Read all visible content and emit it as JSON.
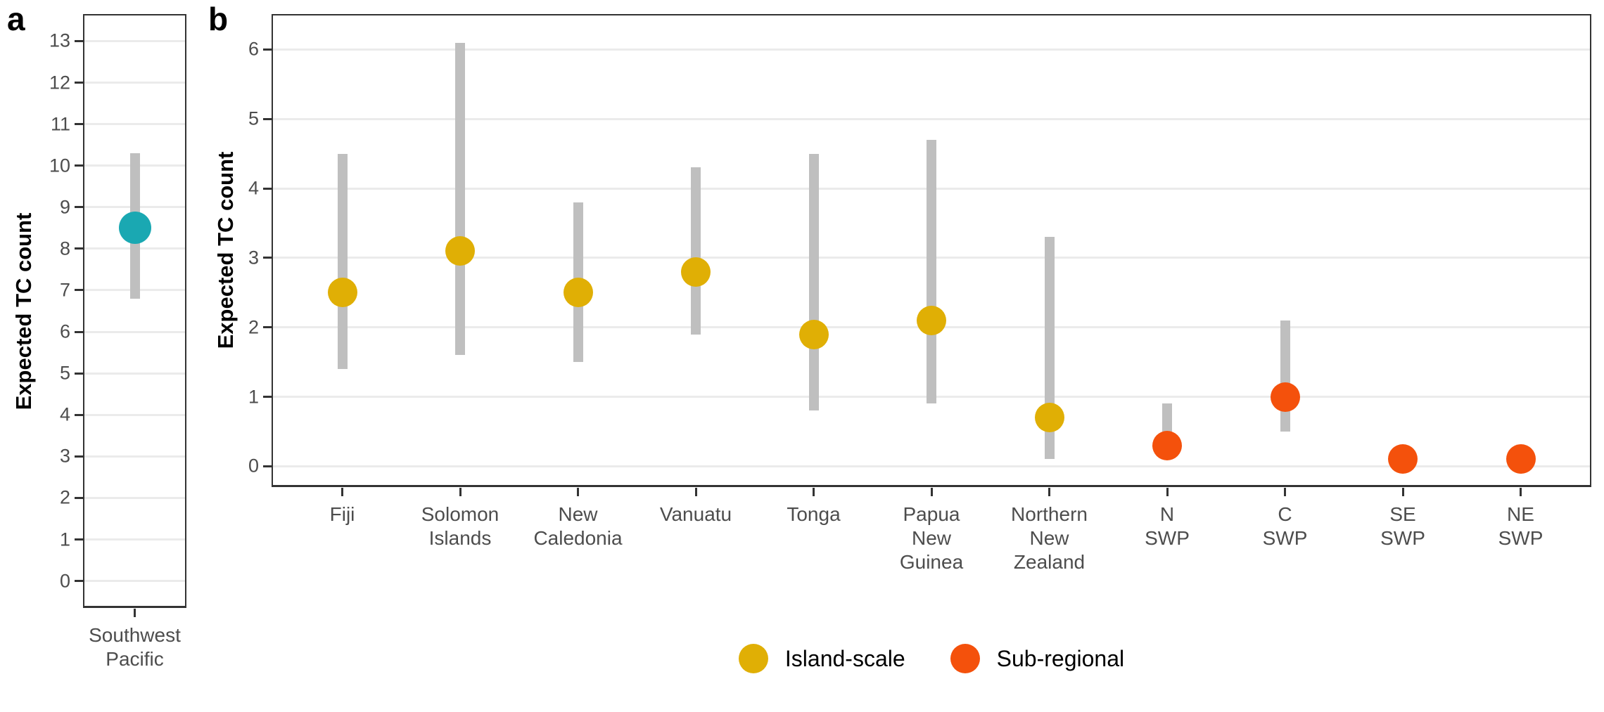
{
  "figure_type": "two-panel dot-and-interval plot",
  "colors": {
    "regional": "#1AA8B2",
    "island_scale": "#E0AF05",
    "sub_regional": "#F4510C",
    "error_bar": "#BFBFBF",
    "gridline": "#EBEBEB",
    "axis_line": "#333333",
    "tick_label": "#4D4D4D",
    "category_label": "#4D4D4D",
    "text": "#000000"
  },
  "panels": {
    "a": {
      "letter": "a",
      "y_axis_title": "Expected TC count"
    },
    "b": {
      "letter": "b",
      "y_axis_title": "Expected TC count"
    }
  },
  "legend": {
    "items": [
      {
        "label": "Island-scale",
        "color_key": "island_scale"
      },
      {
        "label": "Sub-regional",
        "color_key": "sub_regional"
      }
    ]
  },
  "chart_data": [
    {
      "panel": "a",
      "type": "scatter",
      "title": "",
      "xlabel": "",
      "ylabel": "Expected TC count",
      "ylim": [
        -0.65,
        13.65
      ],
      "y_ticks": [
        0,
        1,
        2,
        3,
        4,
        5,
        6,
        7,
        8,
        9,
        10,
        11,
        12,
        13
      ],
      "grid": "horizontal-major",
      "legend_position": "none",
      "points": [
        {
          "category": "Southwest Pacific",
          "category_lines": [
            "Southwest",
            "Pacific"
          ],
          "group": "regional",
          "value": 8.5,
          "ci_low": 6.8,
          "ci_high": 10.3
        }
      ]
    },
    {
      "panel": "b",
      "type": "scatter",
      "title": "",
      "xlabel": "",
      "ylabel": "Expected TC count",
      "ylim": [
        -0.3,
        6.51
      ],
      "y_ticks": [
        0,
        1,
        2,
        3,
        4,
        5,
        6
      ],
      "grid": "horizontal-major",
      "legend_position": "bottom",
      "points": [
        {
          "category": "Fiji",
          "category_lines": [
            "Fiji"
          ],
          "group": "island_scale",
          "value": 2.5,
          "ci_low": 1.4,
          "ci_high": 4.5
        },
        {
          "category": "Solomon Islands",
          "category_lines": [
            "Solomon",
            "Islands"
          ],
          "group": "island_scale",
          "value": 3.1,
          "ci_low": 1.6,
          "ci_high": 6.1
        },
        {
          "category": "New Caledonia",
          "category_lines": [
            "New",
            "Caledonia"
          ],
          "group": "island_scale",
          "value": 2.5,
          "ci_low": 1.5,
          "ci_high": 3.8
        },
        {
          "category": "Vanuatu",
          "category_lines": [
            "Vanuatu"
          ],
          "group": "island_scale",
          "value": 2.8,
          "ci_low": 1.9,
          "ci_high": 4.3
        },
        {
          "category": "Tonga",
          "category_lines": [
            "Tonga"
          ],
          "group": "island_scale",
          "value": 1.9,
          "ci_low": 0.8,
          "ci_high": 4.5
        },
        {
          "category": "Papua New Guinea",
          "category_lines": [
            "Papua",
            "New",
            "Guinea"
          ],
          "group": "island_scale",
          "value": 2.1,
          "ci_low": 0.9,
          "ci_high": 4.7
        },
        {
          "category": "Northern New Zealand",
          "category_lines": [
            "Northern",
            "New",
            "Zealand"
          ],
          "group": "island_scale",
          "value": 0.7,
          "ci_low": 0.1,
          "ci_high": 3.3
        },
        {
          "category": "N SWP",
          "category_lines": [
            "N",
            "SWP"
          ],
          "group": "sub_regional",
          "value": 0.3,
          "ci_low": 0.3,
          "ci_high": 0.9
        },
        {
          "category": "C SWP",
          "category_lines": [
            "C",
            "SWP"
          ],
          "group": "sub_regional",
          "value": 1.0,
          "ci_low": 0.5,
          "ci_high": 2.1
        },
        {
          "category": "SE SWP",
          "category_lines": [
            "SE",
            "SWP"
          ],
          "group": "sub_regional",
          "value": 0.1,
          "ci_low": 0.1,
          "ci_high": 0.1
        },
        {
          "category": "NE SWP",
          "category_lines": [
            "NE",
            "SWP"
          ],
          "group": "sub_regional",
          "value": 0.1,
          "ci_low": 0.1,
          "ci_high": 0.1
        }
      ]
    }
  ]
}
